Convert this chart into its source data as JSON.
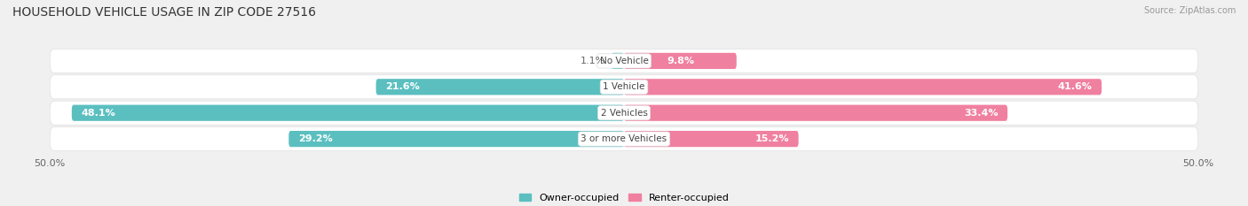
{
  "title": "HOUSEHOLD VEHICLE USAGE IN ZIP CODE 27516",
  "source": "Source: ZipAtlas.com",
  "categories": [
    "No Vehicle",
    "1 Vehicle",
    "2 Vehicles",
    "3 or more Vehicles"
  ],
  "owner_values": [
    1.1,
    21.6,
    48.1,
    29.2
  ],
  "renter_values": [
    9.8,
    41.6,
    33.4,
    15.2
  ],
  "owner_color": "#5bbfc0",
  "renter_color": "#f080a0",
  "axis_limit": 50.0,
  "bg_color": "#f0f0f0",
  "row_bg_color": "#ffffff",
  "separator_color": "#e0e0e0",
  "title_fontsize": 10,
  "label_fontsize": 8,
  "tick_fontsize": 8,
  "source_fontsize": 7,
  "legend_fontsize": 8,
  "bar_height": 0.62,
  "cat_label_fontsize": 7.5,
  "owner_label_color_in": "#ffffff",
  "owner_label_color_out": "#666666",
  "renter_label_color_in": "#ffffff",
  "renter_label_color_out": "#666666"
}
